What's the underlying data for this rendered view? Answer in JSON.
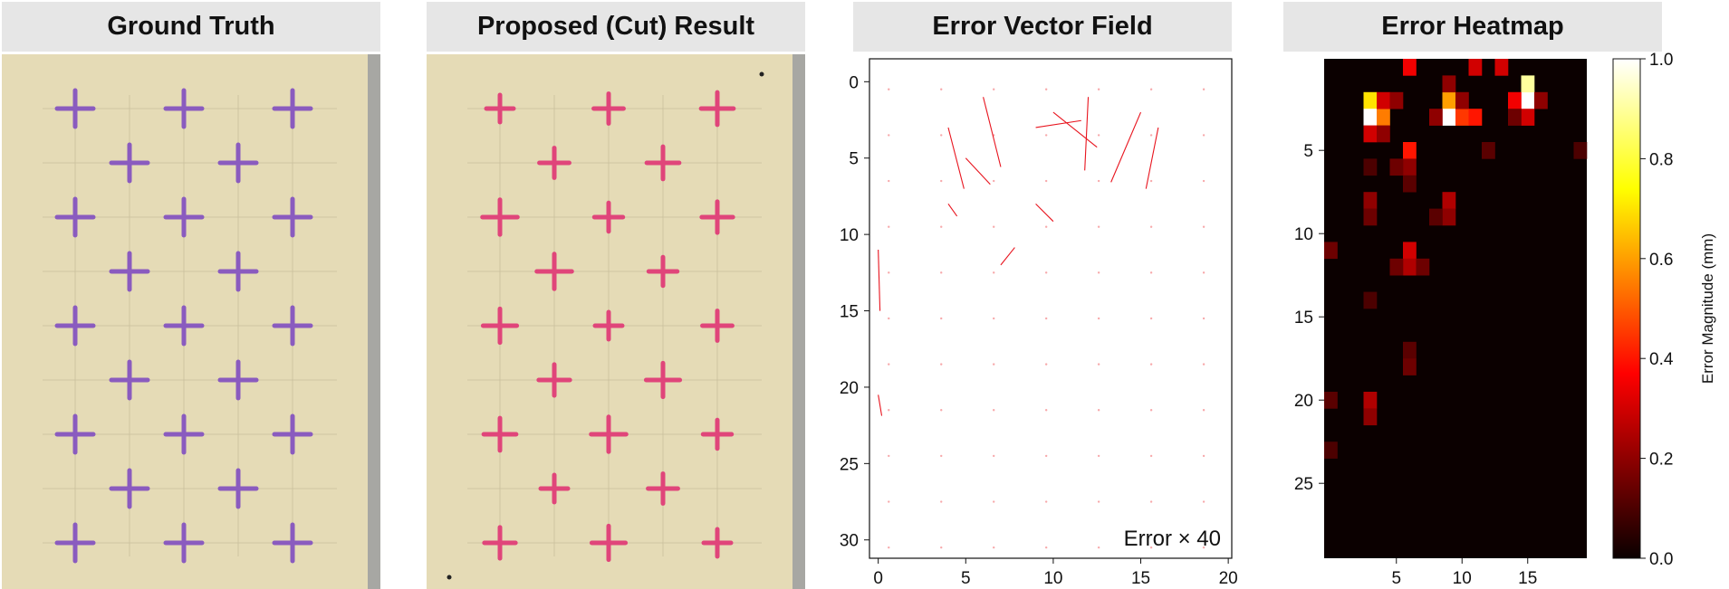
{
  "panels": {
    "ground_truth": {
      "title": "Ground Truth"
    },
    "proposed": {
      "title": "Proposed (Cut) Result"
    },
    "vector_field": {
      "title": "Error Vector Field",
      "note": "Error × 40"
    },
    "heatmap": {
      "title": "Error Heatmap"
    }
  },
  "colors": {
    "ground_truth_mark": "#8a5bbf",
    "cut_mark": "#e0457a",
    "vector": "#e8141e",
    "board": "#e5dbb6"
  },
  "chart_data": [
    {
      "type": "scatter",
      "title": "Error Vector Field",
      "annotation": "Error × 40",
      "x_ticks": [
        "0",
        "5",
        "10",
        "15",
        "20"
      ],
      "y_ticks": [
        "0",
        "5",
        "10",
        "15",
        "20",
        "25",
        "30"
      ],
      "xlim": [
        -0.5,
        20.2
      ],
      "ylim": [
        31.2,
        -1.5
      ],
      "y_inverted": true,
      "scale": 40,
      "vectors": [
        {
          "x": 4,
          "y": 3,
          "dx": 0.9,
          "dy": 3.5
        },
        {
          "x": 5,
          "y": 5,
          "dx": 1.4,
          "dy": 1.5
        },
        {
          "x": 6,
          "y": 1,
          "dx": 1.0,
          "dy": 4.0
        },
        {
          "x": 9,
          "y": 3,
          "dx": 2.6,
          "dy": -0.4
        },
        {
          "x": 10,
          "y": 2,
          "dx": 2.5,
          "dy": 2.0
        },
        {
          "x": 12,
          "y": 1,
          "dx": -0.2,
          "dy": 4.2
        },
        {
          "x": 15,
          "y": 2,
          "dx": -1.7,
          "dy": 4.0
        },
        {
          "x": 16,
          "y": 3,
          "dx": -0.7,
          "dy": 3.5
        },
        {
          "x": 4,
          "y": 8,
          "dx": 0.5,
          "dy": 0.7
        },
        {
          "x": 9,
          "y": 8,
          "dx": 1.0,
          "dy": 1.0
        },
        {
          "x": 7,
          "y": 12,
          "dx": 0.8,
          "dy": -1.0
        },
        {
          "x": 0,
          "y": 11,
          "dx": 0.1,
          "dy": 3.5
        },
        {
          "x": 0,
          "y": 20.5,
          "dx": 0.2,
          "dy": 1.2
        }
      ]
    },
    {
      "type": "heatmap",
      "title": "Error Heatmap",
      "x_ticks": [
        "5",
        "10",
        "15"
      ],
      "y_ticks": [
        "5",
        "10",
        "15",
        "20",
        "25"
      ],
      "cols": 20,
      "rows": 30,
      "colorbar": {
        "label": "Error Magnitude (mm)",
        "range": [
          0.0,
          1.0
        ],
        "ticks": [
          "0.0",
          "0.2",
          "0.4",
          "0.6",
          "0.8",
          "1.0"
        ],
        "colormap": "hot"
      },
      "cells": [
        [
          2,
          3,
          0.7
        ],
        [
          3,
          3,
          1.0
        ],
        [
          3,
          4,
          0.55
        ],
        [
          2,
          4,
          0.3
        ],
        [
          4,
          3,
          0.3
        ],
        [
          2,
          5,
          0.2
        ],
        [
          4,
          4,
          0.2
        ],
        [
          2,
          9,
          0.6
        ],
        [
          3,
          9,
          1.0
        ],
        [
          3,
          10,
          0.45
        ],
        [
          3,
          8,
          0.2
        ],
        [
          2,
          10,
          0.2
        ],
        [
          3,
          11,
          0.4
        ],
        [
          1,
          9,
          0.2
        ],
        [
          2,
          15,
          1.0
        ],
        [
          1,
          15,
          0.9
        ],
        [
          2,
          14,
          0.35
        ],
        [
          3,
          15,
          0.3
        ],
        [
          2,
          16,
          0.2
        ],
        [
          3,
          14,
          0.15
        ],
        [
          0,
          6,
          0.35
        ],
        [
          0,
          11,
          0.3
        ],
        [
          0,
          13,
          0.3
        ],
        [
          5,
          6,
          0.4
        ],
        [
          6,
          6,
          0.2
        ],
        [
          6,
          5,
          0.15
        ],
        [
          7,
          6,
          0.12
        ],
        [
          8,
          3,
          0.2
        ],
        [
          9,
          3,
          0.15
        ],
        [
          8,
          9,
          0.25
        ],
        [
          9,
          9,
          0.2
        ],
        [
          9,
          8,
          0.12
        ],
        [
          11,
          6,
          0.3
        ],
        [
          12,
          6,
          0.25
        ],
        [
          12,
          5,
          0.15
        ],
        [
          12,
          7,
          0.15
        ],
        [
          20,
          3,
          0.25
        ],
        [
          21,
          3,
          0.2
        ],
        [
          17,
          6,
          0.12
        ],
        [
          18,
          6,
          0.15
        ],
        [
          5,
          12,
          0.12
        ],
        [
          6,
          3,
          0.1
        ],
        [
          14,
          3,
          0.1
        ],
        [
          23,
          0,
          0.1
        ],
        [
          11,
          0,
          0.15
        ],
        [
          20,
          0,
          0.12
        ],
        [
          5,
          19,
          0.1
        ]
      ]
    }
  ]
}
